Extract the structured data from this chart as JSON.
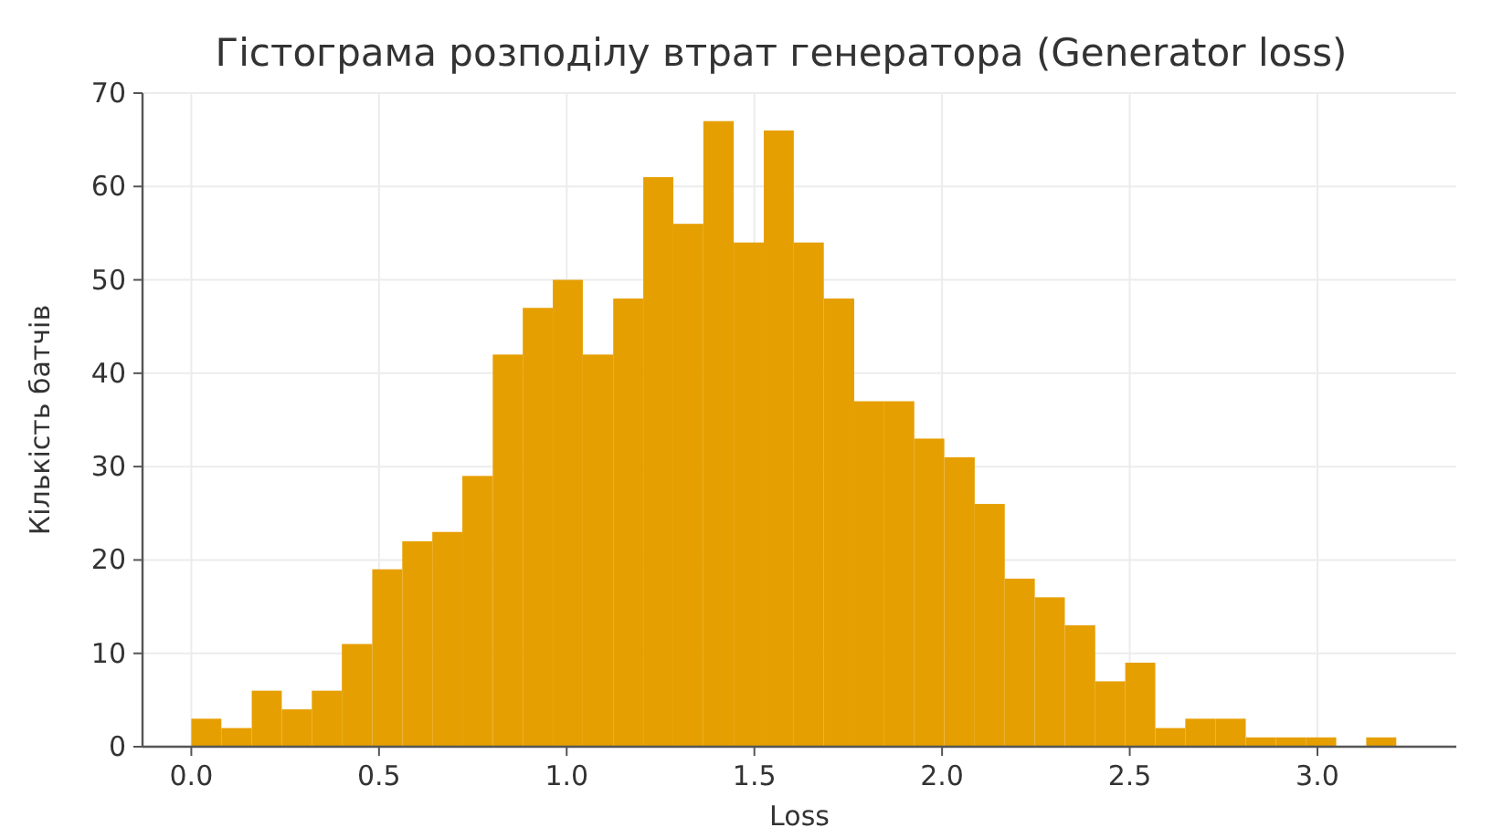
{
  "chart_data": {
    "type": "histogram",
    "title": "Гістограма розподілу втрат генератора (Generator loss)",
    "xlabel": "Loss",
    "ylabel": "Кількість батчів",
    "bins": [
      0,
      0.08,
      0.161,
      0.241,
      0.321,
      0.401,
      0.482,
      0.562,
      0.642,
      0.722,
      0.803,
      0.883,
      0.963,
      1.043,
      1.124,
      1.204,
      1.284,
      1.364,
      1.445,
      1.525,
      1.605,
      1.685,
      1.766,
      1.846,
      1.926,
      2.006,
      2.087,
      2.167,
      2.247,
      2.327,
      2.408,
      2.488,
      2.568,
      2.648,
      2.729,
      2.809,
      2.889,
      2.969,
      3.05,
      3.13,
      3.21
    ],
    "values": [
      3,
      2,
      6,
      4,
      6,
      11,
      19,
      22,
      23,
      29,
      42,
      47,
      50,
      42,
      48,
      61,
      56,
      67,
      54,
      66,
      54,
      48,
      37,
      37,
      33,
      31,
      26,
      18,
      16,
      13,
      7,
      9,
      2,
      3,
      3,
      1,
      1,
      1,
      0,
      1
    ],
    "color": "#e69f00",
    "xlim": [
      -0.13,
      3.37
    ],
    "ylim": [
      0,
      70
    ],
    "xticks": [
      {
        "value": 0,
        "label": "0.0"
      },
      {
        "value": 0.5,
        "label": "0.5"
      },
      {
        "value": 1,
        "label": "1.0"
      },
      {
        "value": 1.5,
        "label": "1.5"
      },
      {
        "value": 2,
        "label": "2.0"
      },
      {
        "value": 2.5,
        "label": "2.5"
      },
      {
        "value": 3,
        "label": "3.0"
      }
    ],
    "yticks": [
      0,
      10,
      20,
      30,
      40,
      50,
      60,
      70
    ],
    "grid": true
  }
}
